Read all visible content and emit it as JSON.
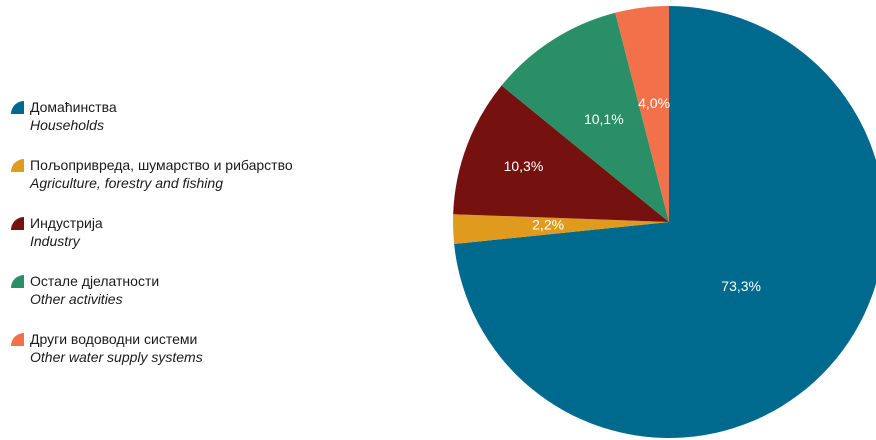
{
  "chart_data": {
    "type": "pie",
    "start_angle_deg": 0,
    "direction": "clockwise",
    "slices": [
      {
        "label_sr": "Домаћинства",
        "label_en": "Households",
        "value": 73.3,
        "value_label": "73,3%",
        "color": "#006a8e"
      },
      {
        "label_sr": "Пољопривреда, шумарство и рибарство",
        "label_en": "Agriculture, forestry and fishing",
        "value": 2.2,
        "value_label": "2,2%",
        "color": "#e09b1e"
      },
      {
        "label_sr": "Индустрија",
        "label_en": "Industry",
        "value": 10.3,
        "value_label": "10,3%",
        "color": "#75120f"
      },
      {
        "label_sr": "Остале дјелатности",
        "label_en": "Other activities",
        "value": 10.1,
        "value_label": "10,1%",
        "color": "#2a8f66"
      },
      {
        "label_sr": "Други водоводни системи",
        "label_en": "Other water supply systems",
        "value": 4.0,
        "value_label": "4,0%",
        "color": "#f2704a"
      }
    ],
    "legend_position": "left"
  }
}
